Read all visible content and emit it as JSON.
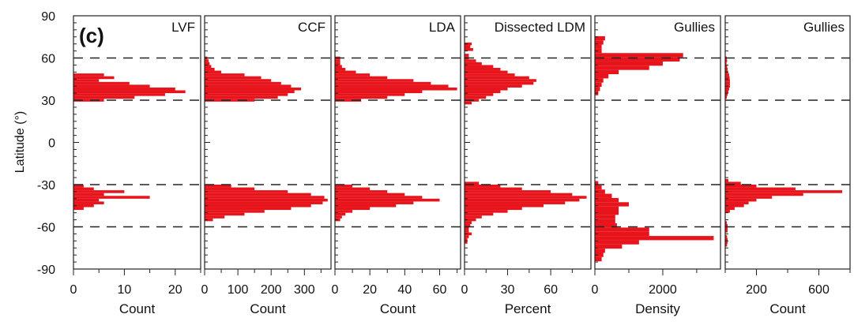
{
  "figure": {
    "panel_label": "(c)",
    "ylabel": "Latitude (°)",
    "ylim": [
      -90,
      90
    ],
    "yticks": [
      "90",
      "60",
      "30",
      "0",
      "-30",
      "-60",
      "-90"
    ],
    "reference_latitudes": [
      60,
      30,
      -30,
      -60
    ],
    "bar_color": "#e8141c"
  },
  "chart_data": [
    {
      "type": "bar",
      "orientation": "horizontal",
      "title": "LVF",
      "xlabel": "Count",
      "xlim": [
        0,
        25
      ],
      "xticks": [
        0,
        10,
        20
      ],
      "bin_width_deg": 2,
      "bins": [
        [
          48,
          6
        ],
        [
          46,
          8
        ],
        [
          44,
          5
        ],
        [
          42,
          11
        ],
        [
          40,
          15
        ],
        [
          38,
          20
        ],
        [
          36,
          22
        ],
        [
          34,
          18
        ],
        [
          32,
          12
        ],
        [
          30,
          6
        ],
        [
          -31,
          2
        ],
        [
          -33,
          4
        ],
        [
          -35,
          10
        ],
        [
          -37,
          6
        ],
        [
          -39,
          15
        ],
        [
          -41,
          5
        ],
        [
          -43,
          6
        ],
        [
          -45,
          4
        ],
        [
          -47,
          2
        ]
      ]
    },
    {
      "type": "bar",
      "orientation": "horizontal",
      "title": "CCF",
      "xlabel": "Count",
      "xlim": [
        0,
        380
      ],
      "xticks": [
        0,
        100,
        200,
        300
      ],
      "bin_width_deg": 2,
      "bins": [
        [
          60,
          8
        ],
        [
          58,
          12
        ],
        [
          56,
          15
        ],
        [
          54,
          20
        ],
        [
          52,
          30
        ],
        [
          50,
          50
        ],
        [
          48,
          120
        ],
        [
          46,
          170
        ],
        [
          44,
          200
        ],
        [
          42,
          230
        ],
        [
          40,
          260
        ],
        [
          38,
          290
        ],
        [
          36,
          270
        ],
        [
          34,
          250
        ],
        [
          32,
          220
        ],
        [
          30,
          150
        ],
        [
          -31,
          80
        ],
        [
          -33,
          150
        ],
        [
          -35,
          250
        ],
        [
          -37,
          320
        ],
        [
          -39,
          360
        ],
        [
          -41,
          370
        ],
        [
          -43,
          355
        ],
        [
          -45,
          320
        ],
        [
          -47,
          260
        ],
        [
          -49,
          180
        ],
        [
          -51,
          120
        ],
        [
          -53,
          60
        ],
        [
          -55,
          25
        ]
      ]
    },
    {
      "type": "bar",
      "orientation": "horizontal",
      "title": "LDA",
      "xlabel": "Count",
      "xlim": [
        0,
        72
      ],
      "xticks": [
        0,
        20,
        40,
        60
      ],
      "bin_width_deg": 2,
      "bins": [
        [
          60,
          3
        ],
        [
          58,
          3
        ],
        [
          56,
          3
        ],
        [
          54,
          4
        ],
        [
          52,
          6
        ],
        [
          50,
          12
        ],
        [
          48,
          20
        ],
        [
          46,
          30
        ],
        [
          44,
          45
        ],
        [
          42,
          55
        ],
        [
          40,
          65
        ],
        [
          38,
          70
        ],
        [
          36,
          50
        ],
        [
          34,
          40
        ],
        [
          32,
          30
        ],
        [
          30,
          15
        ],
        [
          -31,
          10
        ],
        [
          -33,
          20
        ],
        [
          -35,
          30
        ],
        [
          -37,
          40
        ],
        [
          -39,
          50
        ],
        [
          -41,
          60
        ],
        [
          -43,
          45
        ],
        [
          -45,
          35
        ],
        [
          -47,
          20
        ],
        [
          -49,
          10
        ],
        [
          -51,
          6
        ],
        [
          -53,
          4
        ],
        [
          -55,
          3
        ]
      ]
    },
    {
      "type": "bar",
      "orientation": "horizontal",
      "title": "Dissected LDM",
      "xlabel": "Percent",
      "xlim": [
        0,
        88
      ],
      "xticks": [
        0,
        30,
        60
      ],
      "bin_width_deg": 2,
      "bins": [
        [
          70,
          5
        ],
        [
          68,
          4
        ],
        [
          66,
          6
        ],
        [
          62,
          3
        ],
        [
          60,
          3
        ],
        [
          58,
          8
        ],
        [
          56,
          12
        ],
        [
          54,
          20
        ],
        [
          52,
          25
        ],
        [
          50,
          30
        ],
        [
          48,
          35
        ],
        [
          46,
          45
        ],
        [
          44,
          50
        ],
        [
          42,
          48
        ],
        [
          40,
          40
        ],
        [
          38,
          30
        ],
        [
          36,
          25
        ],
        [
          34,
          20
        ],
        [
          32,
          15
        ],
        [
          30,
          10
        ],
        [
          28,
          5
        ],
        [
          -29,
          10
        ],
        [
          -31,
          25
        ],
        [
          -33,
          40
        ],
        [
          -35,
          60
        ],
        [
          -37,
          75
        ],
        [
          -39,
          85
        ],
        [
          -41,
          80
        ],
        [
          -43,
          70
        ],
        [
          -45,
          55
        ],
        [
          -47,
          40
        ],
        [
          -49,
          30
        ],
        [
          -51,
          20
        ],
        [
          -53,
          12
        ],
        [
          -55,
          8
        ],
        [
          -57,
          5
        ],
        [
          -59,
          4
        ],
        [
          -61,
          3
        ],
        [
          -63,
          3
        ],
        [
          -65,
          5
        ],
        [
          -67,
          3
        ],
        [
          -69,
          2
        ],
        [
          -71,
          2
        ]
      ]
    },
    {
      "type": "bar",
      "orientation": "horizontal",
      "title": "Gullies",
      "xlabel": "Density",
      "xlim": [
        0,
        3700
      ],
      "xticks": [
        0,
        2000
      ],
      "bin_width_deg": 3,
      "bins": [
        [
          74,
          300
        ],
        [
          71,
          250
        ],
        [
          68,
          200
        ],
        [
          65,
          200
        ],
        [
          62,
          2600
        ],
        [
          59,
          2500
        ],
        [
          56,
          2000
        ],
        [
          53,
          1600
        ],
        [
          50,
          700
        ],
        [
          47,
          400
        ],
        [
          44,
          250
        ],
        [
          41,
          200
        ],
        [
          38,
          150
        ],
        [
          35,
          100
        ],
        [
          -29,
          100
        ],
        [
          -32,
          200
        ],
        [
          -35,
          300
        ],
        [
          -38,
          500
        ],
        [
          -41,
          700
        ],
        [
          -44,
          1000
        ],
        [
          -47,
          700
        ],
        [
          -50,
          700
        ],
        [
          -53,
          600
        ],
        [
          -56,
          600
        ],
        [
          -59,
          650
        ],
        [
          -62,
          1600
        ],
        [
          -65,
          1600
        ],
        [
          -68,
          3500
        ],
        [
          -71,
          1300
        ],
        [
          -74,
          800
        ],
        [
          -77,
          300
        ],
        [
          -80,
          250
        ],
        [
          -83,
          200
        ]
      ]
    },
    {
      "type": "bar",
      "orientation": "horizontal",
      "title": "Gullies",
      "xlabel": "Count",
      "xlim": [
        0,
        800
      ],
      "xticks": [
        200,
        600
      ],
      "bin_width_deg": 2,
      "bins": [
        [
          60,
          10
        ],
        [
          58,
          12
        ],
        [
          56,
          8
        ],
        [
          54,
          12
        ],
        [
          52,
          15
        ],
        [
          50,
          18
        ],
        [
          48,
          25
        ],
        [
          46,
          28
        ],
        [
          44,
          30
        ],
        [
          42,
          30
        ],
        [
          40,
          30
        ],
        [
          38,
          25
        ],
        [
          36,
          20
        ],
        [
          34,
          15
        ],
        [
          32,
          10
        ],
        [
          -27,
          20
        ],
        [
          -29,
          100
        ],
        [
          -31,
          200
        ],
        [
          -33,
          450
        ],
        [
          -35,
          750
        ],
        [
          -37,
          500
        ],
        [
          -39,
          300
        ],
        [
          -41,
          200
        ],
        [
          -43,
          150
        ],
        [
          -45,
          120
        ],
        [
          -47,
          60
        ],
        [
          -49,
          30
        ],
        [
          -57,
          10
        ],
        [
          -59,
          15
        ],
        [
          -61,
          15
        ],
        [
          -63,
          15
        ],
        [
          -67,
          12
        ],
        [
          -69,
          15
        ],
        [
          -71,
          15
        ],
        [
          -73,
          12
        ]
      ]
    }
  ]
}
